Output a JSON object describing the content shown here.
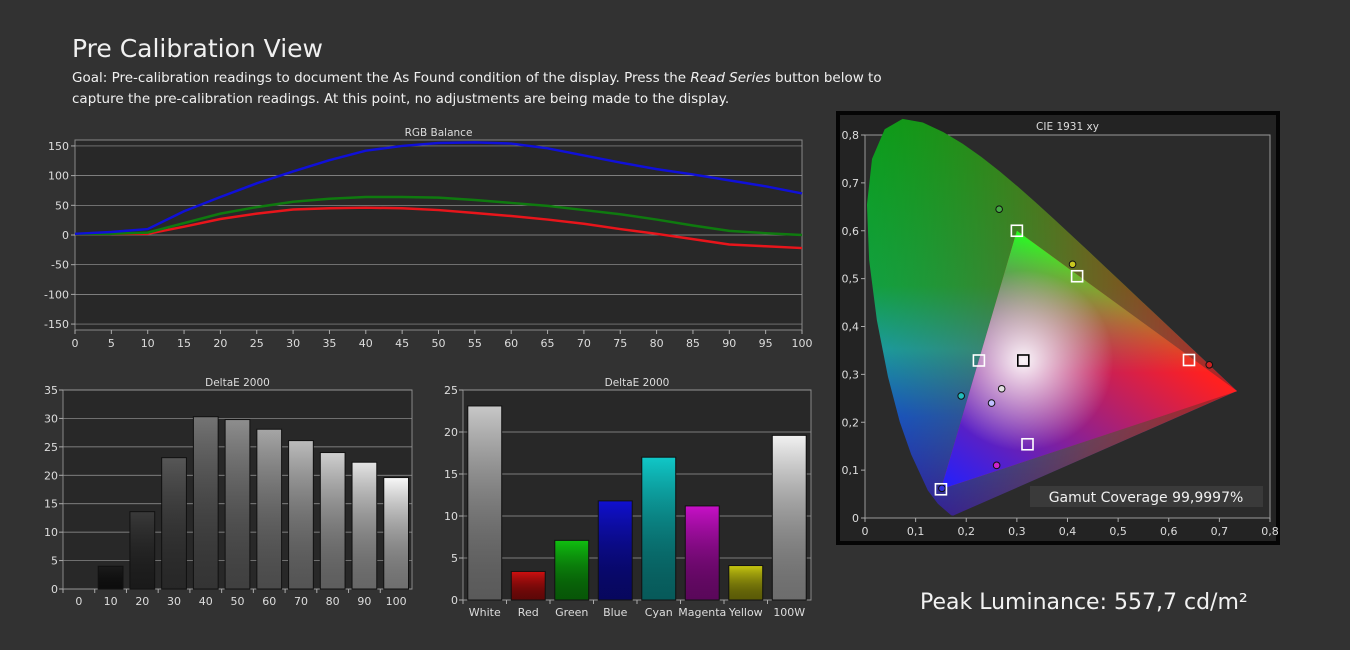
{
  "header": {
    "title": "Pre Calibration View",
    "goal_prefix": "Goal: Pre-calibration readings to document the As Found condition of the display. Press the ",
    "goal_italic": "Read Series",
    "goal_suffix": " button below to capture the pre-calibration readings. At this point, no adjustments are being made to the display."
  },
  "peak_luminance": "Peak Luminance: 557,7 cd/m²",
  "gamut_coverage": "Gamut Coverage 99,9997%",
  "colors": {
    "red": "#e8151b",
    "green": "#0f7a0f",
    "blue": "#1010d8",
    "background": "#323232"
  },
  "chart_data": [
    {
      "type": "line",
      "title": "RGB Balance",
      "x": [
        0,
        5,
        10,
        15,
        20,
        25,
        30,
        35,
        40,
        45,
        50,
        55,
        60,
        65,
        70,
        75,
        80,
        85,
        90,
        95,
        100
      ],
      "x_ticks": [
        0,
        5,
        10,
        15,
        20,
        25,
        30,
        35,
        40,
        45,
        50,
        55,
        60,
        65,
        70,
        75,
        80,
        85,
        90,
        95,
        100
      ],
      "y_ticks": [
        150,
        100,
        50,
        0,
        -50,
        -100,
        -150
      ],
      "ylim": [
        -160,
        160
      ],
      "series": [
        {
          "color": "red",
          "values": [
            2,
            2,
            2,
            14,
            27,
            36,
            43,
            45,
            46,
            45,
            42,
            37,
            32,
            26,
            19,
            10,
            2,
            -7,
            -16,
            -19,
            -22
          ]
        },
        {
          "color": "green",
          "values": [
            2,
            2,
            4,
            20,
            36,
            47,
            56,
            61,
            64,
            64,
            63,
            59,
            54,
            49,
            42,
            35,
            26,
            16,
            7,
            3,
            0
          ]
        },
        {
          "color": "blue",
          "values": [
            2,
            5,
            10,
            40,
            64,
            87,
            107,
            126,
            142,
            150,
            155,
            156,
            154,
            146,
            134,
            122,
            111,
            102,
            92,
            82,
            70
          ]
        }
      ]
    },
    {
      "type": "bar",
      "title": "DeltaE 2000",
      "categories": [
        "0",
        "10",
        "20",
        "30",
        "40",
        "50",
        "60",
        "70",
        "80",
        "90",
        "100"
      ],
      "values": [
        0,
        4.0,
        13.6,
        23.1,
        30.3,
        29.8,
        28.1,
        26.1,
        24.0,
        22.3,
        19.6
      ],
      "ylim": [
        0,
        35
      ],
      "y_ticks": [
        35,
        30,
        25,
        20,
        15,
        10,
        5,
        0
      ],
      "bar_colors": [
        "#000000",
        "#1c1c1c",
        "#3a3a3a",
        "#575757",
        "#747474",
        "#8e8e8e",
        "#a6a6a6",
        "#bcbcbc",
        "#d0d0d0",
        "#e4e4e4",
        "#f8f8f8"
      ]
    },
    {
      "type": "bar",
      "title": "DeltaE 2000",
      "categories": [
        "White",
        "Red",
        "Green",
        "Blue",
        "Cyan",
        "Magenta",
        "Yellow",
        "100W"
      ],
      "values": [
        23.1,
        3.4,
        7.1,
        11.8,
        17.0,
        11.2,
        4.1,
        19.6
      ],
      "ylim": [
        0,
        25
      ],
      "y_ticks": [
        25,
        20,
        15,
        10,
        5,
        0
      ],
      "bar_colors": [
        "#c8c8c8",
        "#d01010",
        "#10c010",
        "#1010d0",
        "#10c8c8",
        "#c810c8",
        "#c8c810",
        "#f2f2f2"
      ]
    },
    {
      "type": "scatter",
      "title": "CIE 1931 xy",
      "xlim": [
        0,
        0.8
      ],
      "ylim": [
        0,
        0.8
      ],
      "x_ticks": [
        "0",
        "0,1",
        "0,2",
        "0,3",
        "0,4",
        "0,5",
        "0,6",
        "0,7",
        "0,8"
      ],
      "y_ticks": [
        "0",
        "0,1",
        "0,2",
        "0,3",
        "0,4",
        "0,5",
        "0,6",
        "0,7",
        "0,8"
      ],
      "targets": [
        {
          "name": "red",
          "x": 0.64,
          "y": 0.33
        },
        {
          "name": "green",
          "x": 0.3,
          "y": 0.6
        },
        {
          "name": "blue",
          "x": 0.15,
          "y": 0.06
        },
        {
          "name": "white",
          "x": 0.3127,
          "y": 0.329
        },
        {
          "name": "cyan",
          "x": 0.225,
          "y": 0.329
        },
        {
          "name": "magenta",
          "x": 0.321,
          "y": 0.154
        },
        {
          "name": "yellow",
          "x": 0.419,
          "y": 0.505
        }
      ],
      "measured": [
        {
          "name": "red",
          "x": 0.68,
          "y": 0.32,
          "color": "#cc2222"
        },
        {
          "name": "green",
          "x": 0.265,
          "y": 0.645,
          "color": "#44aa44"
        },
        {
          "name": "blue",
          "x": 0.152,
          "y": 0.062,
          "color": "#3333dd"
        },
        {
          "name": "white",
          "x": 0.27,
          "y": 0.27,
          "color": "#e0e0e0"
        },
        {
          "name": "cyan",
          "x": 0.19,
          "y": 0.255,
          "color": "#22bbbb"
        },
        {
          "name": "magenta",
          "x": 0.26,
          "y": 0.11,
          "color": "#cc22cc"
        },
        {
          "name": "yellow",
          "x": 0.41,
          "y": 0.53,
          "color": "#c8c820"
        },
        {
          "name": "grey",
          "x": 0.25,
          "y": 0.24,
          "color": "#c0c0ff"
        }
      ]
    }
  ]
}
